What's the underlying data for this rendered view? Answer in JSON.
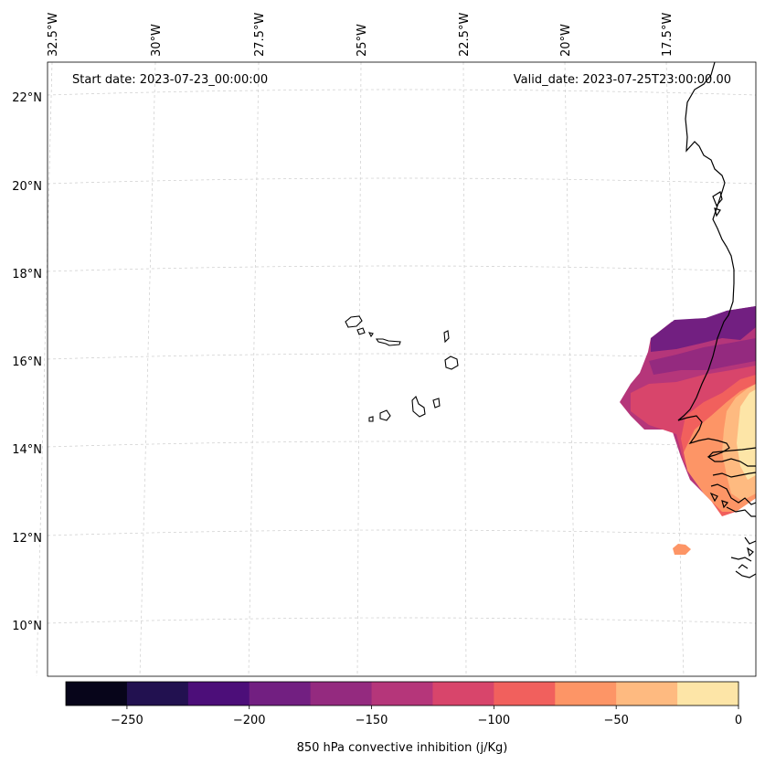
{
  "map": {
    "projection": "lambert-conformal",
    "extent": {
      "lon_min": -33.0,
      "lon_max": -15.0,
      "lat_min": 9.0,
      "lat_max": 23.0
    },
    "annotations": {
      "start_date": "Start date: 2023-07-23_00:00:00",
      "valid_date": "Valid_date: 2023-07-25T23:00:00.00"
    },
    "gridlines": {
      "longitude_labels": [
        "32.5°W",
        "30°W",
        "27.5°W",
        "25°W",
        "22.5°W",
        "20°W",
        "17.5°W"
      ],
      "longitude_values": [
        -32.5,
        -30,
        -27.5,
        -25,
        -22.5,
        -20,
        -17.5
      ],
      "latitude_labels": [
        "22°N",
        "20°N",
        "18°N",
        "16°N",
        "14°N",
        "12°N",
        "10°N"
      ],
      "latitude_values": [
        22,
        20,
        18,
        16,
        14,
        12,
        10
      ],
      "style": "dashed-light-gray"
    },
    "features": [
      "coastline",
      "cape-verde-islands",
      "west-africa-coast"
    ],
    "field": {
      "name": "850 hPa convective inhibition",
      "units": "j/Kg",
      "region": "Senegal / Gambia / Guinea-Bissau coast",
      "observed_min_level": -175,
      "observed_max_level": 0
    }
  },
  "colorbar": {
    "label": "850 hPa convective inhibition (j/Kg)",
    "levels": [
      -275,
      -250,
      -225,
      -200,
      -175,
      -150,
      -125,
      -100,
      -75,
      -50,
      -25,
      0
    ],
    "colors": [
      "#07051a",
      "#221150",
      "#4c0e79",
      "#721f81",
      "#942a7f",
      "#b5367a",
      "#d8456b",
      "#f1605d",
      "#fd9566",
      "#feba80",
      "#fde5a7"
    ],
    "tick_values": [
      -250,
      -200,
      -150,
      -100,
      -50,
      0
    ],
    "tick_labels": [
      "−250",
      "−200",
      "−150",
      "−100",
      "−50",
      "0"
    ]
  }
}
